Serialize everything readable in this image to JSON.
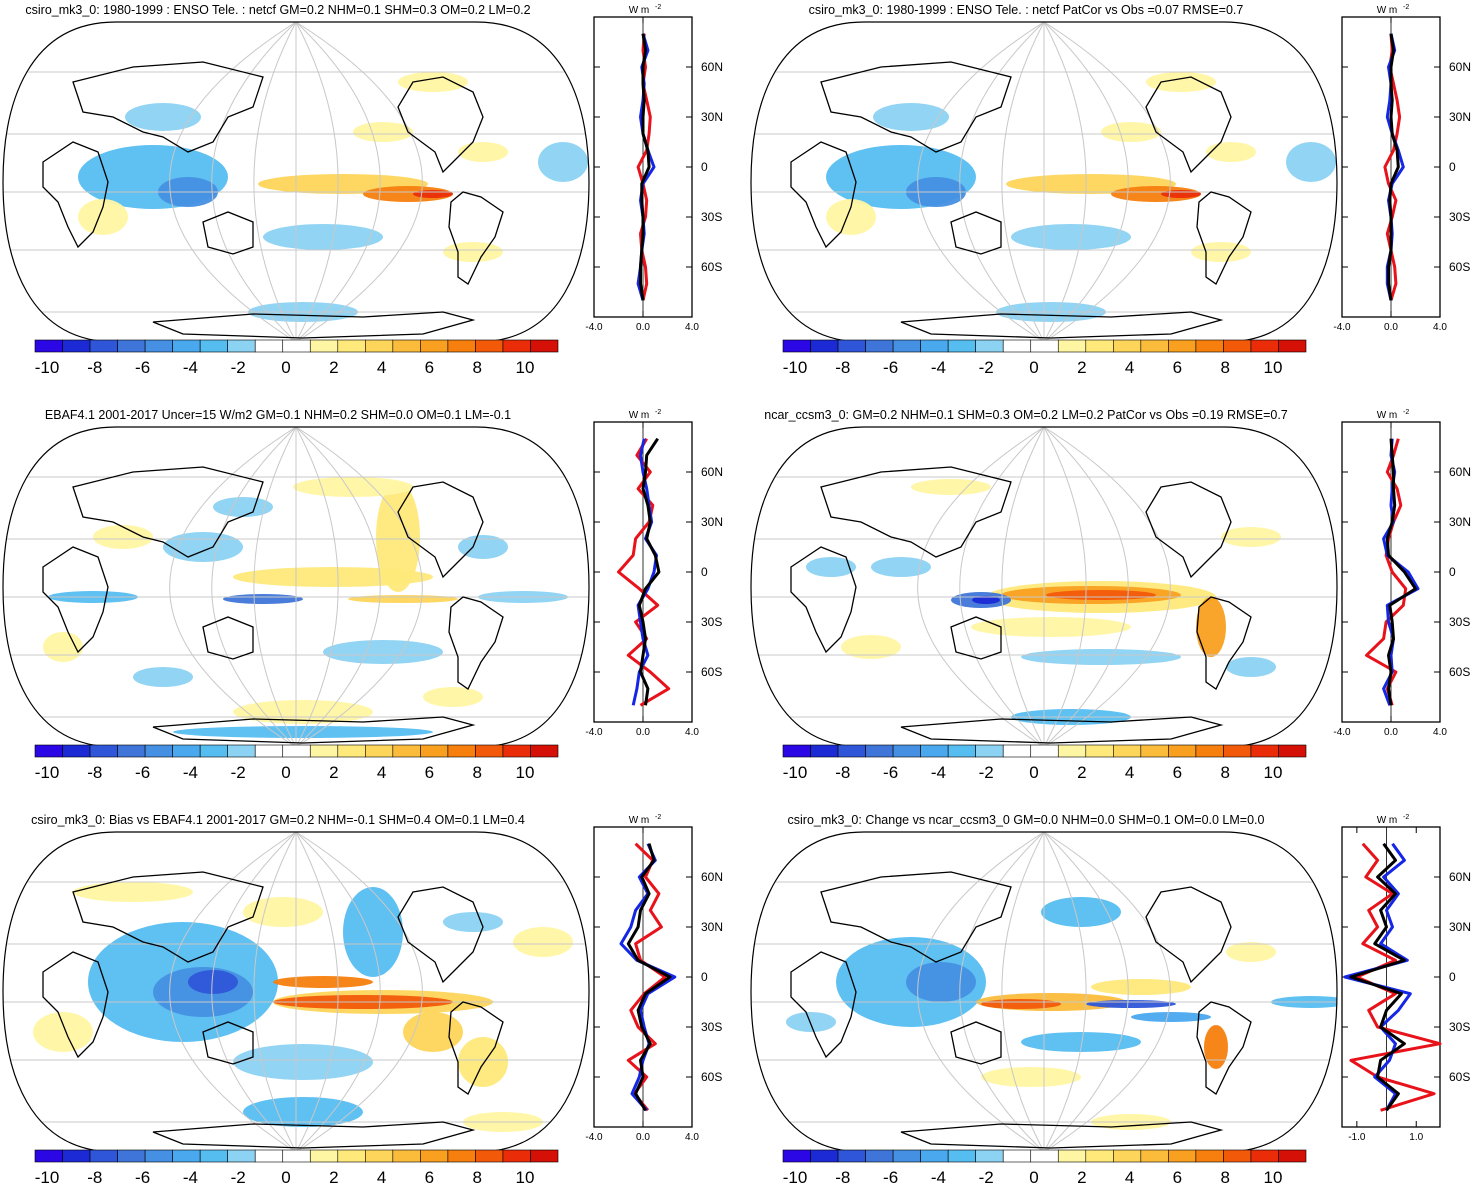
{
  "colors": {
    "colorbar": [
      "#2b07e6",
      "#1c2ad6",
      "#2f56d8",
      "#3f75d9",
      "#4590e3",
      "#4aa8ee",
      "#56bdf1",
      "#8cd2f2",
      "#ffffff",
      "#ffffff",
      "#fff6a3",
      "#fee97a",
      "#fdd55a",
      "#fbbc3c",
      "#f9a020",
      "#f77f0e",
      "#f25a0a",
      "#ea2d08",
      "#d51006"
    ],
    "obs": "#e8121a",
    "model": "#1426e6",
    "zonal": "#000000",
    "grid": "#c8c8c8"
  },
  "panels": [
    {
      "title": "csiro_mk3_0: 1980-1999 : ENSO Tele. : netcf GM=0.2 NHM=0.1 SHM=0.3 OM=0.2 LM=0.2",
      "pattern": "enso",
      "colorbar_ticks": [
        "-10",
        "-8",
        "-6",
        "-4",
        "-2",
        "0",
        "2",
        "4",
        "6",
        "8",
        "10"
      ],
      "chart_data": {
        "type": "line",
        "ylabel": "W m",
        "ylabel_sup": "-2",
        "xticks": [
          "-4.0",
          "0.0",
          "4.0"
        ],
        "xlim": [
          -4,
          4
        ],
        "yticks": [
          "60N",
          "30N",
          "0",
          "30S",
          "60S"
        ],
        "lat": [
          80,
          70,
          60,
          50,
          40,
          30,
          20,
          10,
          0,
          -10,
          -20,
          -30,
          -40,
          -50,
          -60,
          -70,
          -80
        ],
        "series": [
          {
            "color": "obs",
            "values": [
              0.1,
              0.0,
              0.2,
              0.0,
              0.3,
              0.6,
              0.5,
              0.3,
              -0.4,
              0.0,
              0.3,
              0.2,
              -0.2,
              -0.1,
              0.2,
              0.3,
              0.0
            ]
          },
          {
            "color": "model",
            "values": [
              0.0,
              0.4,
              -0.1,
              0.1,
              0.0,
              -0.2,
              0.0,
              0.4,
              0.9,
              0.0,
              -0.2,
              0.0,
              0.1,
              -0.1,
              -0.2,
              -0.4,
              0.0
            ]
          },
          {
            "color": "zonal",
            "values": [
              0.0,
              0.2,
              0.0,
              0.0,
              0.1,
              0.0,
              0.0,
              0.4,
              0.5,
              -0.1,
              -0.1,
              0.0,
              0.0,
              -0.1,
              -0.2,
              -0.2,
              0.0
            ]
          }
        ]
      }
    },
    {
      "title": "csiro_mk3_0: 1980-1999 : ENSO Tele. : netcf PatCor vs Obs =0.07 RMSE=0.7",
      "pattern": "enso",
      "colorbar_ticks": [
        "-10",
        "-8",
        "-6",
        "-4",
        "-2",
        "0",
        "2",
        "4",
        "6",
        "8",
        "10"
      ],
      "chart_data": {
        "type": "line",
        "ylabel": "W m",
        "ylabel_sup": "-2",
        "xticks": [
          "-4.0",
          "0.0",
          "4.0"
        ],
        "xlim": [
          -4,
          4
        ],
        "yticks": [
          "60N",
          "30N",
          "0",
          "30S",
          "60S"
        ],
        "lat": [
          80,
          70,
          60,
          50,
          40,
          30,
          20,
          10,
          0,
          -10,
          -20,
          -30,
          -40,
          -50,
          -60,
          -70,
          -80
        ],
        "series": [
          {
            "color": "obs",
            "values": [
              0.0,
              0.1,
              -0.1,
              0.2,
              0.5,
              0.7,
              0.5,
              0.2,
              -0.5,
              -0.2,
              0.4,
              0.1,
              -0.3,
              0.0,
              0.3,
              0.4,
              0.0
            ]
          },
          {
            "color": "model",
            "values": [
              0.0,
              0.3,
              -0.2,
              0.0,
              -0.1,
              -0.3,
              0.1,
              0.6,
              1.0,
              0.1,
              -0.2,
              0.0,
              0.1,
              0.0,
              -0.3,
              -0.3,
              0.0
            ]
          },
          {
            "color": "zonal",
            "values": [
              0.0,
              0.2,
              0.0,
              0.0,
              0.1,
              0.0,
              0.1,
              0.5,
              0.6,
              0.0,
              -0.1,
              0.0,
              0.0,
              0.0,
              -0.2,
              -0.2,
              0.0
            ]
          }
        ]
      }
    },
    {
      "title": "EBAF4.1 2001-2017 Uncer=15 W/m2 GM=0.1 NHM=0.2 SHM=0.0 OM=0.1 LM=-0.1",
      "pattern": "obs",
      "colorbar_ticks": [
        "-10",
        "-8",
        "-6",
        "-4",
        "-2",
        "0",
        "2",
        "4",
        "6",
        "8",
        "10"
      ],
      "chart_data": {
        "type": "line",
        "ylabel": "W m",
        "ylabel_sup": "-2",
        "xticks": [
          "-4.0",
          "0.0",
          "4.0"
        ],
        "xlim": [
          -4,
          4
        ],
        "yticks": [
          "60N",
          "30N",
          "0",
          "30S",
          "60S"
        ],
        "lat": [
          80,
          70,
          60,
          50,
          40,
          30,
          20,
          10,
          0,
          -10,
          -20,
          -30,
          -40,
          -50,
          -60,
          -70,
          -80
        ],
        "series": [
          {
            "color": "obs",
            "values": [
              0.3,
              -0.5,
              0.6,
              -0.4,
              0.8,
              0.5,
              -0.6,
              -0.8,
              -2.0,
              -0.3,
              1.2,
              -0.6,
              0.3,
              -1.2,
              0.6,
              2.1,
              -0.2
            ]
          },
          {
            "color": "model",
            "values": [
              0.1,
              -0.2,
              0.0,
              0.3,
              0.5,
              0.7,
              0.2,
              1.1,
              0.9,
              0.4,
              -0.4,
              -0.2,
              0.0,
              0.4,
              -0.3,
              -0.5,
              -0.8
            ]
          },
          {
            "color": "zonal",
            "values": [
              1.2,
              0.3,
              0.2,
              0.0,
              0.4,
              0.6,
              0.3,
              1.0,
              1.3,
              0.2,
              -0.3,
              0.0,
              0.2,
              0.0,
              -0.2,
              0.4,
              0.2
            ]
          }
        ]
      }
    },
    {
      "title": "ncar_ccsm3_0: GM=0.2 NHM=0.1 SHM=0.3 OM=0.2 LM=0.2 PatCor vs Obs =0.19 RMSE=0.7",
      "pattern": "ncar",
      "colorbar_ticks": [
        "-10",
        "-8",
        "-6",
        "-4",
        "-2",
        "0",
        "2",
        "4",
        "6",
        "8",
        "10"
      ],
      "chart_data": {
        "type": "line",
        "ylabel": "W m",
        "ylabel_sup": "-2",
        "xticks": [
          "-4.0",
          "0.0",
          "4.0"
        ],
        "xlim": [
          -4,
          4
        ],
        "yticks": [
          "60N",
          "30N",
          "0",
          "30S",
          "60S"
        ],
        "lat": [
          80,
          70,
          60,
          50,
          40,
          30,
          20,
          10,
          0,
          -10,
          -20,
          -30,
          -40,
          -50,
          -60,
          -70,
          -80
        ],
        "series": [
          {
            "color": "obs",
            "values": [
              0.6,
              0.2,
              -0.3,
              0.5,
              0.8,
              0.2,
              -0.2,
              -0.4,
              0.1,
              1.2,
              1.0,
              -0.4,
              -0.6,
              -2.0,
              0.4,
              -0.3,
              0.1
            ]
          },
          {
            "color": "model",
            "values": [
              0.1,
              0.0,
              0.3,
              0.1,
              0.0,
              0.2,
              -0.6,
              -0.3,
              1.4,
              2.2,
              -0.3,
              -0.2,
              0.2,
              0.0,
              0.1,
              -0.6,
              -0.1
            ]
          },
          {
            "color": "zonal",
            "values": [
              0.0,
              0.1,
              0.2,
              0.2,
              0.3,
              0.1,
              -0.3,
              -0.2,
              1.1,
              2.0,
              -0.1,
              0.1,
              0.2,
              -0.2,
              0.0,
              -0.2,
              0.0
            ]
          }
        ]
      }
    },
    {
      "title": "csiro_mk3_0: Bias vs EBAF4.1 2001-2017 GM=0.2 NHM=-0.1 SHM=0.4 OM=0.1 LM=0.4",
      "pattern": "bias",
      "colorbar_ticks": [
        "-10",
        "-8",
        "-6",
        "-4",
        "-2",
        "0",
        "2",
        "4",
        "6",
        "8",
        "10"
      ],
      "chart_data": {
        "type": "line",
        "ylabel": "W m",
        "ylabel_sup": "-2",
        "xticks": [
          "-4.0",
          "0.0",
          "4.0"
        ],
        "xlim": [
          -4,
          4
        ],
        "yticks": [
          "60N",
          "30N",
          "0",
          "30S",
          "60S"
        ],
        "lat": [
          80,
          70,
          60,
          50,
          40,
          30,
          20,
          10,
          0,
          -10,
          -20,
          -30,
          -40,
          -50,
          -60,
          -70,
          -80
        ],
        "series": [
          {
            "color": "obs",
            "values": [
              -0.6,
              0.8,
              0.2,
              1.3,
              0.6,
              1.5,
              -0.6,
              -0.2,
              1.8,
              0.1,
              -1.0,
              -0.4,
              1.0,
              -1.2,
              0.3,
              -0.7,
              0.4
            ]
          },
          {
            "color": "model",
            "values": [
              0.4,
              1.0,
              -0.3,
              0.4,
              -0.6,
              -1.0,
              -1.8,
              -0.5,
              2.6,
              0.4,
              -0.2,
              0.1,
              0.5,
              0.0,
              -0.3,
              -0.9,
              0.3
            ]
          },
          {
            "color": "zonal",
            "values": [
              0.5,
              0.9,
              -0.1,
              0.5,
              -0.2,
              -0.4,
              -1.2,
              -0.4,
              2.2,
              0.2,
              -0.4,
              -0.1,
              0.6,
              -0.2,
              0.0,
              -0.6,
              0.2
            ]
          }
        ]
      }
    },
    {
      "title": "csiro_mk3_0: Change vs ncar_ccsm3_0 GM=0.0 NHM=0.0 SHM=0.1 OM=0.0 LM=0.0",
      "pattern": "change",
      "colorbar_ticks": [
        "-10",
        "-8",
        "-6",
        "-4",
        "-2",
        "0",
        "2",
        "4",
        "6",
        "8",
        "10"
      ],
      "chart_data": {
        "type": "line",
        "ylabel": "W m",
        "ylabel_sup": "-2",
        "xticks": [
          "-1.0",
          "1.0"
        ],
        "xlim": [
          -1.5,
          1.8
        ],
        "yticks": [
          "60N",
          "30N",
          "0",
          "30S",
          "60S"
        ],
        "lat": [
          80,
          70,
          60,
          50,
          40,
          30,
          20,
          10,
          0,
          -10,
          -20,
          -30,
          -40,
          -50,
          -60,
          -70,
          -80
        ],
        "series": [
          {
            "color": "obs",
            "values": [
              -0.8,
              -0.3,
              -0.7,
              0.2,
              -0.6,
              -0.3,
              -0.8,
              0.3,
              -1.0,
              0.3,
              -0.6,
              -0.3,
              1.8,
              -1.2,
              -0.3,
              1.6,
              -0.2
            ]
          },
          {
            "color": "model",
            "values": [
              0.2,
              0.6,
              -0.1,
              0.4,
              0.0,
              0.2,
              -0.2,
              0.7,
              -1.4,
              0.8,
              0.4,
              -0.2,
              0.3,
              0.1,
              -0.4,
              0.3,
              0.0
            ]
          },
          {
            "color": "zonal",
            "values": [
              -0.1,
              0.3,
              -0.3,
              0.3,
              -0.2,
              0.0,
              -0.4,
              0.6,
              -1.2,
              0.5,
              0.0,
              -0.2,
              0.6,
              -0.2,
              -0.3,
              0.4,
              0.0
            ]
          }
        ]
      }
    }
  ]
}
